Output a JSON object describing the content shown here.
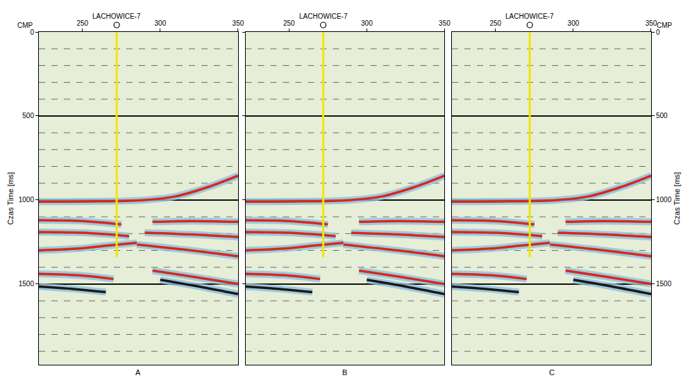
{
  "chart_data": [
    {
      "type": "line",
      "title": "A",
      "xlabel": "CMP",
      "ylabel": "Czas Time [ms]",
      "tick_labels": true,
      "grid": true,
      "xlim": [
        222,
        350
      ],
      "xticks": [
        250,
        300,
        350
      ],
      "ylim": [
        0,
        1980
      ],
      "yticks": [
        0,
        500,
        1000,
        1500
      ],
      "ygrid": [
        100,
        200,
        300,
        400,
        600,
        700,
        800,
        900,
        1100,
        1200,
        1300,
        1400,
        1600,
        1700,
        1800,
        1900
      ],
      "well": {
        "label": "LACHOWICE-7",
        "x": 272,
        "ylim": [
          0,
          1340
        ],
        "color": "#f2e600"
      },
      "series": [
        {
          "color": "#d42a1e",
          "x": [
            222,
            260,
            290,
            310,
            330,
            350
          ],
          "values": [
            1010,
            1008,
            1000,
            978,
            925,
            855
          ]
        },
        {
          "color": "#d42a1e",
          "x": [
            222,
            250,
            275
          ],
          "values": [
            1120,
            1125,
            1145
          ]
        },
        {
          "color": "#d42a1e",
          "x": [
            295,
            320,
            350
          ],
          "values": [
            1130,
            1125,
            1130
          ]
        },
        {
          "color": "#d42a1e",
          "x": [
            222,
            250,
            280
          ],
          "values": [
            1190,
            1195,
            1215
          ]
        },
        {
          "color": "#d42a1e",
          "x": [
            290,
            320,
            350
          ],
          "values": [
            1195,
            1205,
            1220
          ]
        },
        {
          "color": "#d42a1e",
          "x": [
            222,
            245,
            265,
            285
          ],
          "values": [
            1300,
            1290,
            1272,
            1255
          ]
        },
        {
          "color": "#d42a1e",
          "x": [
            285,
            320,
            350
          ],
          "values": [
            1265,
            1300,
            1335
          ]
        },
        {
          "color": "#d42a1e",
          "x": [
            222,
            250,
            270
          ],
          "values": [
            1440,
            1450,
            1470
          ]
        },
        {
          "color": "#1a1a1a",
          "x": [
            222,
            245,
            265
          ],
          "values": [
            1515,
            1530,
            1548
          ]
        },
        {
          "color": "#d42a1e",
          "x": [
            295,
            320,
            350
          ],
          "values": [
            1420,
            1455,
            1500
          ]
        },
        {
          "color": "#1a1a1a",
          "x": [
            300,
            325,
            350
          ],
          "values": [
            1475,
            1515,
            1560
          ]
        }
      ]
    },
    {
      "type": "line",
      "title": "B",
      "tick_labels": "x",
      "grid": true,
      "xlim": [
        222,
        350
      ],
      "xticks": [
        250,
        300,
        350
      ],
      "ylim": [
        0,
        1980
      ],
      "yticks": [
        0,
        500,
        1000,
        1500
      ],
      "ygrid": [
        100,
        200,
        300,
        400,
        600,
        700,
        800,
        900,
        1100,
        1200,
        1300,
        1400,
        1600,
        1700,
        1800,
        1900
      ],
      "well": {
        "label": "LACHOWICE-7",
        "x": 272,
        "ylim": [
          0,
          1340
        ],
        "color": "#f2e600"
      },
      "series": [
        {
          "color": "#d42a1e",
          "x": [
            222,
            260,
            290,
            310,
            330,
            350
          ],
          "values": [
            1010,
            1008,
            1000,
            978,
            925,
            855
          ]
        },
        {
          "color": "#d42a1e",
          "x": [
            222,
            250,
            275
          ],
          "values": [
            1120,
            1125,
            1145
          ]
        },
        {
          "color": "#d42a1e",
          "x": [
            295,
            320,
            350
          ],
          "values": [
            1130,
            1125,
            1130
          ]
        },
        {
          "color": "#d42a1e",
          "x": [
            222,
            250,
            280
          ],
          "values": [
            1190,
            1195,
            1215
          ]
        },
        {
          "color": "#d42a1e",
          "x": [
            290,
            320,
            350
          ],
          "values": [
            1195,
            1205,
            1220
          ]
        },
        {
          "color": "#d42a1e",
          "x": [
            222,
            245,
            265,
            285
          ],
          "values": [
            1300,
            1290,
            1272,
            1255
          ]
        },
        {
          "color": "#d42a1e",
          "x": [
            285,
            320,
            350
          ],
          "values": [
            1265,
            1300,
            1335
          ]
        },
        {
          "color": "#d42a1e",
          "x": [
            222,
            250,
            270
          ],
          "values": [
            1440,
            1450,
            1470
          ]
        },
        {
          "color": "#1a1a1a",
          "x": [
            222,
            245,
            265
          ],
          "values": [
            1515,
            1530,
            1548
          ]
        },
        {
          "color": "#d42a1e",
          "x": [
            295,
            320,
            350
          ],
          "values": [
            1420,
            1455,
            1500
          ]
        },
        {
          "color": "#1a1a1a",
          "x": [
            300,
            325,
            350
          ],
          "values": [
            1475,
            1515,
            1560
          ]
        }
      ]
    },
    {
      "type": "line",
      "title": "C",
      "xlabel": "CMP",
      "ylabel": "Czas Time [ms]",
      "tick_labels": true,
      "grid": true,
      "xlim": [
        222,
        350
      ],
      "xticks": [
        250,
        300,
        350
      ],
      "ylim": [
        0,
        1980
      ],
      "yticks": [
        0,
        500,
        1000,
        1500
      ],
      "ygrid": [
        100,
        200,
        300,
        400,
        600,
        700,
        800,
        900,
        1100,
        1200,
        1300,
        1400,
        1600,
        1700,
        1800,
        1900
      ],
      "well": {
        "label": "LACHOWICE-7",
        "x": 272,
        "ylim": [
          0,
          1340
        ],
        "color": "#f2e600"
      },
      "series": [
        {
          "color": "#d42a1e",
          "x": [
            222,
            260,
            290,
            310,
            330,
            350
          ],
          "values": [
            1010,
            1008,
            1000,
            978,
            925,
            855
          ]
        },
        {
          "color": "#d42a1e",
          "x": [
            222,
            250,
            275
          ],
          "values": [
            1120,
            1125,
            1145
          ]
        },
        {
          "color": "#d42a1e",
          "x": [
            295,
            320,
            350
          ],
          "values": [
            1130,
            1125,
            1130
          ]
        },
        {
          "color": "#d42a1e",
          "x": [
            222,
            250,
            280
          ],
          "values": [
            1190,
            1195,
            1215
          ]
        },
        {
          "color": "#d42a1e",
          "x": [
            290,
            320,
            350
          ],
          "values": [
            1195,
            1205,
            1220
          ]
        },
        {
          "color": "#d42a1e",
          "x": [
            222,
            245,
            265,
            285
          ],
          "values": [
            1300,
            1290,
            1272,
            1255
          ]
        },
        {
          "color": "#d42a1e",
          "x": [
            285,
            320,
            350
          ],
          "values": [
            1265,
            1300,
            1335
          ]
        },
        {
          "color": "#d42a1e",
          "x": [
            222,
            250,
            270
          ],
          "values": [
            1440,
            1450,
            1470
          ]
        },
        {
          "color": "#1a1a1a",
          "x": [
            222,
            245,
            265
          ],
          "values": [
            1515,
            1530,
            1548
          ]
        },
        {
          "color": "#d42a1e",
          "x": [
            295,
            320,
            350
          ],
          "values": [
            1420,
            1455,
            1500
          ]
        },
        {
          "color": "#1a1a1a",
          "x": [
            300,
            325,
            350
          ],
          "values": [
            1475,
            1515,
            1560
          ]
        }
      ]
    }
  ]
}
